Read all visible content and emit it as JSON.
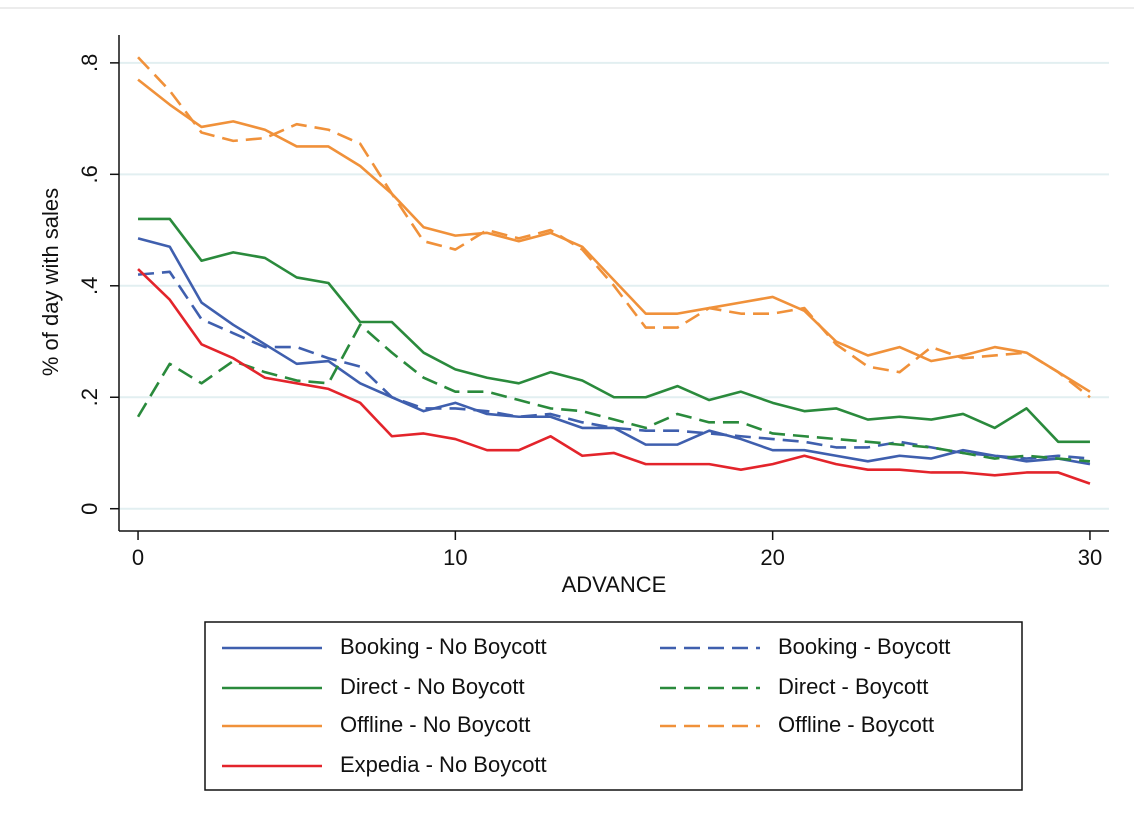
{
  "chart_data": {
    "type": "line",
    "y_label": "% of day with sales",
    "x_label": "ADVANCE",
    "x": [
      0,
      1,
      2,
      3,
      4,
      5,
      6,
      7,
      8,
      9,
      10,
      11,
      12,
      13,
      14,
      15,
      16,
      17,
      18,
      19,
      20,
      21,
      22,
      23,
      24,
      25,
      26,
      27,
      28,
      29,
      30
    ],
    "xlim": [
      -0.6,
      30.6
    ],
    "xticks": [
      0,
      10,
      20,
      30
    ],
    "ylim": [
      -0.04,
      0.85
    ],
    "yticks": [
      0,
      {
        "value": 0.2,
        "label": ".2"
      },
      {
        "value": 0.4,
        "label": ".4"
      },
      {
        "value": 0.6,
        "label": ".6"
      },
      {
        "value": 0.8,
        "label": ".8"
      }
    ],
    "grid": true,
    "legend": "bottom",
    "series": [
      {
        "name": "Booking - No Boycott",
        "color": "#3f5fae",
        "style": "solid",
        "values": [
          0.485,
          0.47,
          0.37,
          0.33,
          0.295,
          0.26,
          0.265,
          0.225,
          0.2,
          0.175,
          0.19,
          0.17,
          0.165,
          0.165,
          0.145,
          0.145,
          0.115,
          0.115,
          0.14,
          0.125,
          0.105,
          0.105,
          0.095,
          0.085,
          0.095,
          0.09,
          0.105,
          0.095,
          0.085,
          0.09,
          0.08
        ]
      },
      {
        "name": "Booking - Boycott",
        "color": "#3f5fae",
        "style": "dashed",
        "values": [
          0.42,
          0.425,
          0.34,
          0.315,
          0.29,
          0.29,
          0.27,
          0.255,
          0.2,
          0.18,
          0.18,
          0.175,
          0.165,
          0.17,
          0.155,
          0.145,
          0.14,
          0.14,
          0.135,
          0.13,
          0.125,
          0.12,
          0.11,
          0.11,
          0.12,
          0.11,
          0.1,
          0.095,
          0.09,
          0.095,
          0.09
        ]
      },
      {
        "name": "Direct - No Boycott",
        "color": "#2a8a3c",
        "style": "solid",
        "values": [
          0.52,
          0.52,
          0.445,
          0.46,
          0.45,
          0.415,
          0.405,
          0.335,
          0.335,
          0.28,
          0.25,
          0.235,
          0.225,
          0.245,
          0.23,
          0.2,
          0.2,
          0.22,
          0.195,
          0.21,
          0.19,
          0.175,
          0.18,
          0.16,
          0.165,
          0.16,
          0.17,
          0.145,
          0.18,
          0.12,
          0.12
        ]
      },
      {
        "name": "Direct - Boycott",
        "color": "#2a8a3c",
        "style": "dashed",
        "values": [
          0.165,
          0.26,
          0.225,
          0.265,
          0.245,
          0.23,
          0.225,
          0.33,
          0.28,
          0.235,
          0.21,
          0.21,
          0.195,
          0.18,
          0.175,
          0.16,
          0.145,
          0.17,
          0.155,
          0.155,
          0.135,
          0.13,
          0.125,
          0.12,
          0.115,
          0.11,
          0.1,
          0.09,
          0.095,
          0.09,
          0.085
        ]
      },
      {
        "name": "Offline - No Boycott",
        "color": "#f0913a",
        "style": "solid",
        "values": [
          0.77,
          0.725,
          0.685,
          0.695,
          0.68,
          0.65,
          0.65,
          0.615,
          0.565,
          0.505,
          0.49,
          0.495,
          0.48,
          0.495,
          0.47,
          0.41,
          0.35,
          0.35,
          0.36,
          0.37,
          0.38,
          0.355,
          0.3,
          0.275,
          0.29,
          0.265,
          0.275,
          0.29,
          0.28,
          0.245,
          0.21
        ]
      },
      {
        "name": "Offline - Boycott",
        "color": "#f0913a",
        "style": "dashed",
        "values": [
          0.81,
          0.75,
          0.675,
          0.66,
          0.665,
          0.69,
          0.68,
          0.655,
          0.565,
          0.48,
          0.465,
          0.5,
          0.485,
          0.5,
          0.465,
          0.4,
          0.325,
          0.325,
          0.36,
          0.35,
          0.35,
          0.36,
          0.295,
          0.255,
          0.245,
          0.29,
          0.27,
          0.275,
          0.28,
          0.245,
          0.2
        ]
      },
      {
        "name": "Expedia - No Boycott",
        "color": "#e3242b",
        "style": "solid",
        "values": [
          0.43,
          0.375,
          0.295,
          0.27,
          0.235,
          0.225,
          0.215,
          0.19,
          0.13,
          0.135,
          0.125,
          0.105,
          0.105,
          0.13,
          0.095,
          0.1,
          0.08,
          0.08,
          0.08,
          0.07,
          0.08,
          0.095,
          0.08,
          0.07,
          0.07,
          0.065,
          0.065,
          0.06,
          0.065,
          0.065,
          0.045
        ]
      }
    ]
  }
}
